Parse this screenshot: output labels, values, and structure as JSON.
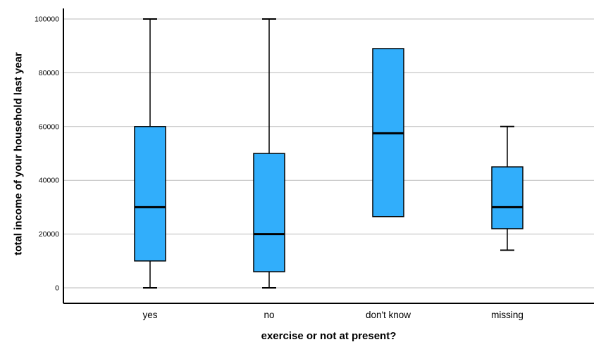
{
  "chart_data": {
    "type": "boxplot",
    "xlabel": "exercise or not at present?",
    "ylabel": "total income of your household last year",
    "categories": [
      "yes",
      "no",
      "don't know",
      "missing"
    ],
    "yticks": [
      0,
      20000,
      40000,
      60000,
      80000,
      100000
    ],
    "ytick_labels": [
      "0",
      "20000",
      "40000",
      "60000",
      "80000",
      "100000"
    ],
    "ylim": [
      0,
      100000
    ],
    "grid": true,
    "legend": false,
    "series": [
      {
        "category": "yes",
        "whisker_low": 0,
        "q1": 10000,
        "median": 30000,
        "q3": 60000,
        "whisker_high": 100000
      },
      {
        "category": "no",
        "whisker_low": 0,
        "q1": 6000,
        "median": 20000,
        "q3": 50000,
        "whisker_high": 100000
      },
      {
        "category": "don't know",
        "whisker_low": null,
        "q1": 26500,
        "median": 57500,
        "q3": 89000,
        "whisker_high": null
      },
      {
        "category": "missing",
        "whisker_low": 14000,
        "q1": 22000,
        "median": 30000,
        "q3": 45000,
        "whisker_high": 60000
      }
    ],
    "colors": {
      "box_fill": "#31AEFB",
      "box_stroke": "#000000",
      "median": "#000000",
      "whisker": "#000000",
      "gridline": "#BBBBBB",
      "axis": "#000000",
      "text": "#000000",
      "background": "#FFFFFF"
    }
  }
}
